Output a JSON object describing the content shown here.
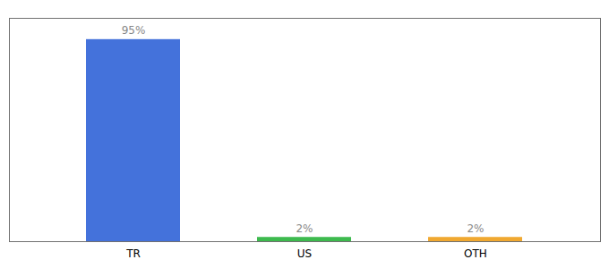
{
  "chart_data": {
    "type": "bar",
    "categories": [
      "TR",
      "US",
      "OTH"
    ],
    "values": [
      95,
      2,
      2
    ],
    "value_labels": [
      "95%",
      "2%",
      "2%"
    ],
    "colors": [
      "#4472db",
      "#3dba4e",
      "#f0a830"
    ],
    "ylim": [
      0,
      105
    ],
    "data_labels": true,
    "tick_labels": "x",
    "grid": false
  }
}
